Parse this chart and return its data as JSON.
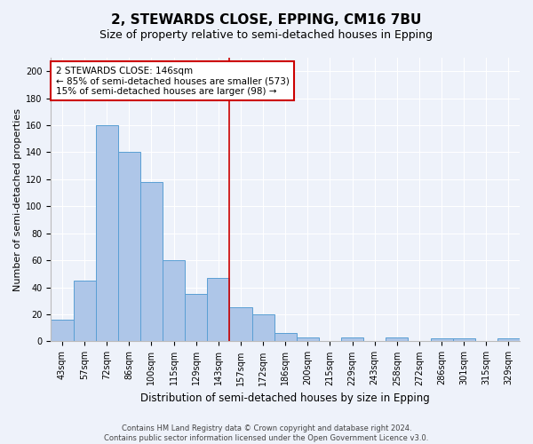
{
  "title": "2, STEWARDS CLOSE, EPPING, CM16 7BU",
  "subtitle": "Size of property relative to semi-detached houses in Epping",
  "xlabel": "Distribution of semi-detached houses by size in Epping",
  "ylabel": "Number of semi-detached properties",
  "categories": [
    "43sqm",
    "57sqm",
    "72sqm",
    "86sqm",
    "100sqm",
    "115sqm",
    "129sqm",
    "143sqm",
    "157sqm",
    "172sqm",
    "186sqm",
    "200sqm",
    "215sqm",
    "229sqm",
    "243sqm",
    "258sqm",
    "272sqm",
    "286sqm",
    "301sqm",
    "315sqm",
    "329sqm"
  ],
  "values": [
    16,
    45,
    160,
    140,
    118,
    60,
    35,
    47,
    25,
    20,
    6,
    3,
    0,
    3,
    0,
    3,
    0,
    2,
    2,
    0,
    2
  ],
  "bar_color": "#aec6e8",
  "bar_edge_color": "#5a9fd4",
  "vline_x": 7.5,
  "vline_color": "#cc0000",
  "annotation_line1": "2 STEWARDS CLOSE: 146sqm",
  "annotation_line2": "← 85% of semi-detached houses are smaller (573)",
  "annotation_line3": "15% of semi-detached houses are larger (98) →",
  "annotation_box_color": "#ffffff",
  "annotation_box_edge": "#cc0000",
  "ylim": [
    0,
    210
  ],
  "yticks": [
    0,
    20,
    40,
    60,
    80,
    100,
    120,
    140,
    160,
    180,
    200
  ],
  "footer_line1": "Contains HM Land Registry data © Crown copyright and database right 2024.",
  "footer_line2": "Contains public sector information licensed under the Open Government Licence v3.0.",
  "background_color": "#eef2fa",
  "grid_color": "#ffffff",
  "title_fontsize": 11,
  "subtitle_fontsize": 9,
  "xlabel_fontsize": 8.5,
  "ylabel_fontsize": 8,
  "tick_fontsize": 7,
  "annotation_fontsize": 7.5,
  "footer_fontsize": 6
}
